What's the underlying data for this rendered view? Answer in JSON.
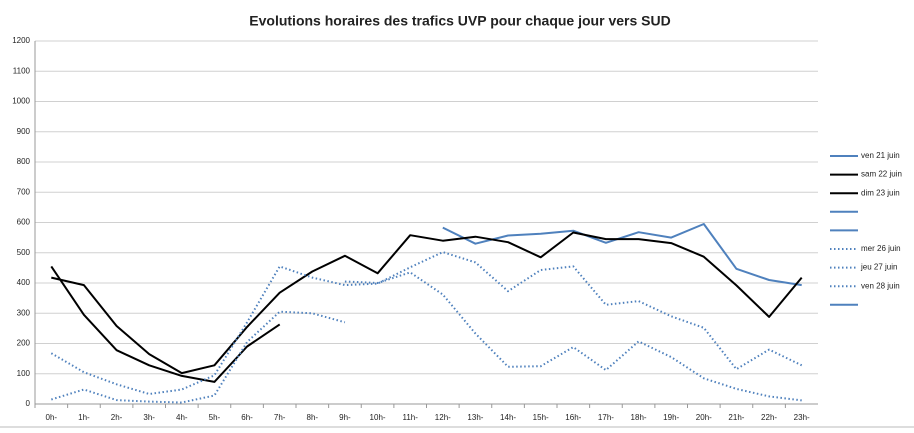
{
  "chart_data": {
    "type": "line",
    "title": "Evolutions horaires des trafics UVP pour chaque jour vers SUD",
    "categories": [
      "0h-",
      "1h-",
      "2h-",
      "3h-",
      "4h-",
      "5h-",
      "6h-",
      "7h-",
      "8h-",
      "9h-",
      "10h-",
      "11h-",
      "12h-",
      "13h-",
      "14h-",
      "15h-",
      "16h-",
      "17h-",
      "18h-",
      "19h-",
      "20h-",
      "21h-",
      "22h-",
      "23h-"
    ],
    "ylim": [
      0,
      1200
    ],
    "yticks": [
      0,
      100,
      200,
      300,
      400,
      500,
      600,
      700,
      800,
      900,
      1000,
      1100,
      1200
    ],
    "grid": true,
    "legend": "right",
    "series": [
      {
        "name": "ven 21 juin",
        "color": "#4f81bd",
        "dash": "solid",
        "values": [
          null,
          null,
          null,
          null,
          null,
          null,
          null,
          null,
          null,
          null,
          null,
          null,
          583,
          530,
          557,
          563,
          573,
          533,
          568,
          550,
          595,
          447,
          410,
          393
        ]
      },
      {
        "name": "sam 22 juin",
        "color": "#000000",
        "dash": "solid",
        "values": [
          418,
          393,
          258,
          165,
          102,
          128,
          255,
          368,
          438,
          490,
          432,
          558,
          540,
          553,
          535,
          485,
          567,
          545,
          545,
          532,
          487,
          392,
          288,
          418
        ]
      },
      {
        "name": "dim 23 juin",
        "color": "#000000",
        "dash": "solid",
        "values": [
          455,
          295,
          178,
          128,
          93,
          73,
          190,
          263,
          null,
          null,
          null,
          null,
          null,
          null,
          null,
          null,
          null,
          null,
          null,
          null,
          null,
          null,
          null,
          null
        ]
      },
      {
        "name": null,
        "color": "#4f81bd",
        "dash": "solid",
        "values": [
          null,
          null,
          null,
          null,
          null,
          null,
          null,
          null,
          null,
          null,
          null,
          null,
          null,
          null,
          null,
          null,
          null,
          null,
          null,
          null,
          null,
          null,
          null,
          null
        ]
      },
      {
        "name": null,
        "color": "#4f81bd",
        "dash": "solid",
        "values": [
          null,
          null,
          null,
          null,
          null,
          null,
          null,
          null,
          null,
          null,
          null,
          null,
          null,
          null,
          null,
          null,
          null,
          null,
          null,
          null,
          null,
          null,
          null,
          null
        ]
      },
      {
        "name": "mer 26 juin",
        "color": "#4f81bd",
        "dash": "dotted",
        "values": [
          168,
          105,
          65,
          33,
          48,
          95,
          270,
          455,
          418,
          393,
          398,
          452,
          502,
          468,
          373,
          443,
          455,
          328,
          340,
          290,
          252,
          115,
          180,
          128
        ]
      },
      {
        "name": "jeu 27 juin",
        "color": "#4f81bd",
        "dash": "dotted",
        "values": [
          15,
          48,
          13,
          8,
          5,
          28,
          205,
          305,
          300,
          270,
          null,
          null,
          null,
          null,
          null,
          null,
          null,
          null,
          null,
          null,
          null,
          null,
          null,
          null
        ]
      },
      {
        "name": "ven 28 juin",
        "color": "#4f81bd",
        "dash": "dotted",
        "values": [
          null,
          null,
          null,
          null,
          null,
          null,
          null,
          null,
          null,
          405,
          400,
          435,
          362,
          233,
          123,
          125,
          188,
          112,
          207,
          155,
          85,
          50,
          25,
          12
        ]
      },
      {
        "name": null,
        "color": "#4f81bd",
        "dash": "solid",
        "values": [
          null,
          null,
          null,
          null,
          null,
          null,
          null,
          null,
          null,
          null,
          null,
          null,
          null,
          null,
          null,
          null,
          null,
          null,
          null,
          null,
          null,
          null,
          null,
          null
        ]
      }
    ]
  }
}
